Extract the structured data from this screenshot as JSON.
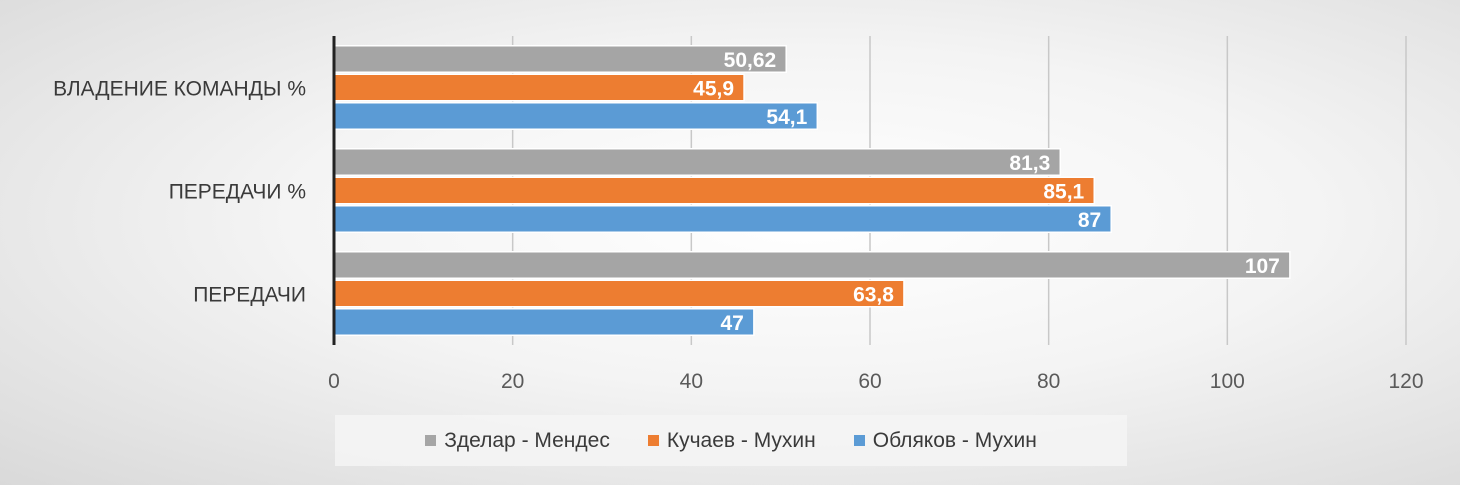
{
  "chart_data": {
    "type": "bar",
    "orientation": "horizontal",
    "categories": [
      "ВЛАДЕНИЕ КОМАНДЫ %",
      "ПЕРЕДАЧИ %",
      "ПЕРЕДАЧИ"
    ],
    "series": [
      {
        "name": "Зделар - Мендес",
        "color": "#a5a5a5",
        "values": [
          50.62,
          81.3,
          107
        ],
        "labels": [
          "50,62",
          "81,3",
          "107"
        ]
      },
      {
        "name": "Кучаев - Мухин",
        "color": "#ed7d31",
        "values": [
          45.9,
          85.1,
          63.8
        ],
        "labels": [
          "45,9",
          "85,1",
          "63,8"
        ]
      },
      {
        "name": "Обляков - Мухин",
        "color": "#5b9bd5",
        "values": [
          54.1,
          87,
          47
        ],
        "labels": [
          "54,1",
          "87",
          "47"
        ]
      }
    ],
    "xlim": [
      0,
      120
    ],
    "xticks": [
      0,
      20,
      40,
      60,
      80,
      100,
      120
    ],
    "xtick_labels": [
      "0",
      "20",
      "40",
      "60",
      "80",
      "100",
      "120"
    ],
    "grid": true,
    "legend_position": "bottom",
    "title": "",
    "xlabel": "",
    "ylabel": ""
  }
}
